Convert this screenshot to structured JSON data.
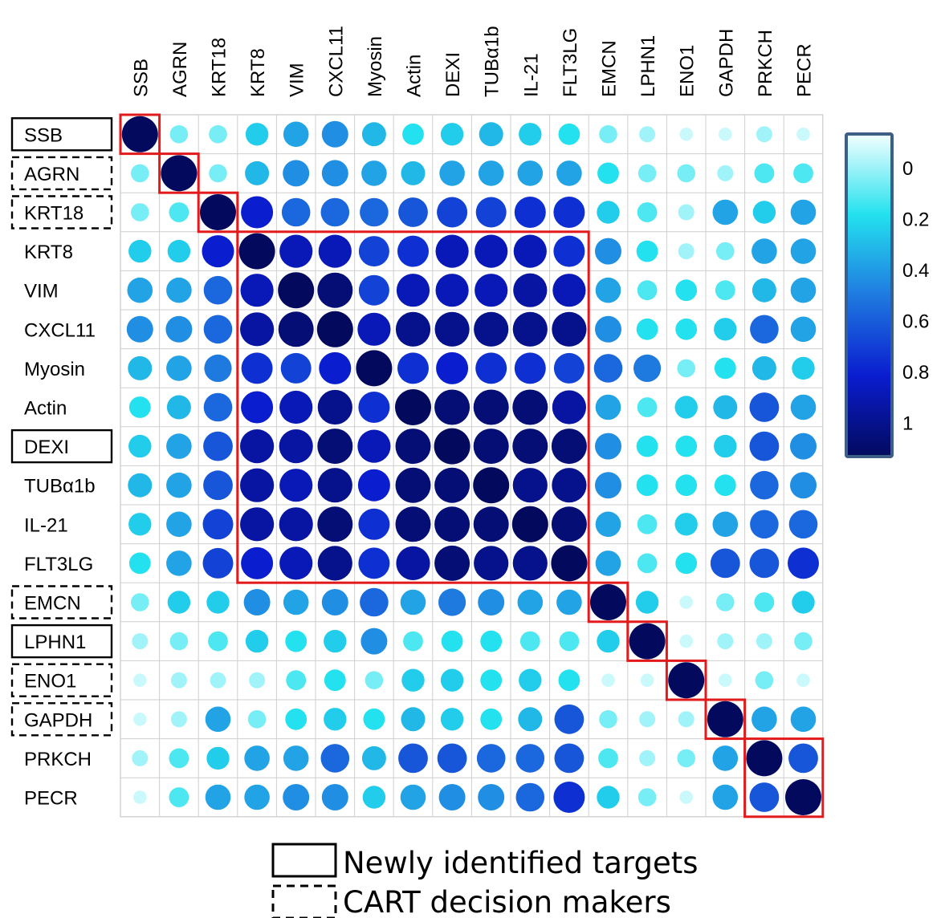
{
  "chart_data": {
    "type": "heatmap",
    "labels": [
      "SSB",
      "AGRN",
      "KRT18",
      "KRT8",
      "VIM",
      "CXCL11",
      "Myosin",
      "Actin",
      "DEXI",
      "TUBα1b",
      "IL-21",
      "FLT3LG",
      "EMCN",
      "LPHN1",
      "ENO1",
      "GAPDH",
      "PRKCH",
      "PECR"
    ],
    "row_label_box": [
      "solid",
      "dashed",
      "dashed",
      "none",
      "none",
      "none",
      "none",
      "none",
      "solid",
      "none",
      "none",
      "none",
      "dashed",
      "solid",
      "dashed",
      "dashed",
      "none",
      "none"
    ],
    "values": [
      [
        1.0,
        0.15,
        0.15,
        0.3,
        0.4,
        0.45,
        0.35,
        0.25,
        0.3,
        0.35,
        0.3,
        0.25,
        0.15,
        0.1,
        0.05,
        0.05,
        0.1,
        0.05
      ],
      [
        0.15,
        1.0,
        0.15,
        0.35,
        0.45,
        0.45,
        0.4,
        0.35,
        0.4,
        0.4,
        0.4,
        0.4,
        0.25,
        0.15,
        0.15,
        0.1,
        0.2,
        0.2
      ],
      [
        0.15,
        0.2,
        1.0,
        0.75,
        0.55,
        0.55,
        0.55,
        0.6,
        0.65,
        0.65,
        0.7,
        0.7,
        0.3,
        0.2,
        0.1,
        0.4,
        0.3,
        0.4
      ],
      [
        0.3,
        0.3,
        0.75,
        1.0,
        0.8,
        0.8,
        0.65,
        0.7,
        0.8,
        0.8,
        0.8,
        0.7,
        0.45,
        0.25,
        0.1,
        0.15,
        0.4,
        0.4
      ],
      [
        0.4,
        0.4,
        0.55,
        0.8,
        1.0,
        0.95,
        0.65,
        0.8,
        0.8,
        0.8,
        0.85,
        0.8,
        0.4,
        0.2,
        0.25,
        0.2,
        0.35,
        0.4
      ],
      [
        0.45,
        0.45,
        0.55,
        0.85,
        0.95,
        1.0,
        0.8,
        0.9,
        0.9,
        0.9,
        0.9,
        0.9,
        0.45,
        0.25,
        0.25,
        0.3,
        0.55,
        0.4
      ],
      [
        0.35,
        0.4,
        0.5,
        0.7,
        0.65,
        0.75,
        1.0,
        0.7,
        0.75,
        0.7,
        0.7,
        0.65,
        0.55,
        0.5,
        0.15,
        0.25,
        0.35,
        0.3
      ],
      [
        0.25,
        0.35,
        0.55,
        0.75,
        0.8,
        0.9,
        0.7,
        1.0,
        0.95,
        0.95,
        0.95,
        0.85,
        0.4,
        0.2,
        0.3,
        0.35,
        0.6,
        0.4
      ],
      [
        0.3,
        0.4,
        0.6,
        0.85,
        0.85,
        0.95,
        0.8,
        0.95,
        1.0,
        0.95,
        0.95,
        0.95,
        0.45,
        0.25,
        0.25,
        0.3,
        0.6,
        0.45
      ],
      [
        0.35,
        0.4,
        0.6,
        0.85,
        0.8,
        0.9,
        0.75,
        0.95,
        0.95,
        1.0,
        0.9,
        0.9,
        0.45,
        0.25,
        0.25,
        0.25,
        0.55,
        0.45
      ],
      [
        0.3,
        0.4,
        0.65,
        0.85,
        0.85,
        0.95,
        0.7,
        0.95,
        0.95,
        0.95,
        1.0,
        0.95,
        0.4,
        0.2,
        0.3,
        0.4,
        0.55,
        0.55
      ],
      [
        0.25,
        0.4,
        0.65,
        0.75,
        0.8,
        0.9,
        0.7,
        0.85,
        0.95,
        0.9,
        0.9,
        1.0,
        0.4,
        0.2,
        0.25,
        0.6,
        0.6,
        0.7
      ],
      [
        0.15,
        0.3,
        0.3,
        0.45,
        0.4,
        0.45,
        0.55,
        0.4,
        0.5,
        0.45,
        0.4,
        0.4,
        1.0,
        0.3,
        0.05,
        0.15,
        0.2,
        0.3
      ],
      [
        0.1,
        0.15,
        0.2,
        0.3,
        0.25,
        0.3,
        0.45,
        0.2,
        0.25,
        0.25,
        0.2,
        0.2,
        0.3,
        1.0,
        0.05,
        0.1,
        0.1,
        0.15
      ],
      [
        0.05,
        0.1,
        0.1,
        0.1,
        0.2,
        0.25,
        0.15,
        0.3,
        0.3,
        0.25,
        0.3,
        0.25,
        0.05,
        0.05,
        1.0,
        0.05,
        0.15,
        0.05
      ],
      [
        0.05,
        0.1,
        0.4,
        0.15,
        0.25,
        0.3,
        0.25,
        0.35,
        0.3,
        0.25,
        0.35,
        0.6,
        0.15,
        0.1,
        0.1,
        1.0,
        0.4,
        0.4
      ],
      [
        0.1,
        0.2,
        0.3,
        0.4,
        0.4,
        0.55,
        0.35,
        0.6,
        0.6,
        0.55,
        0.55,
        0.6,
        0.2,
        0.1,
        0.15,
        0.4,
        1.0,
        0.6
      ],
      [
        0.05,
        0.2,
        0.4,
        0.4,
        0.45,
        0.45,
        0.3,
        0.4,
        0.45,
        0.45,
        0.55,
        0.7,
        0.3,
        0.15,
        0.05,
        0.4,
        0.6,
        1.0
      ]
    ],
    "scale": {
      "min": 0,
      "max": 1,
      "ticks": [
        "0",
        "0.2",
        "0.4",
        "0.6",
        "0.8",
        "1"
      ],
      "colors": [
        "#f4ffff",
        "#23e1ee",
        "#1f7ae0",
        "#0a1dcf",
        "#030a5e"
      ]
    },
    "highlight_blocks": [
      [
        0,
        0
      ],
      [
        1,
        1
      ],
      [
        2,
        2
      ],
      [
        3,
        11
      ],
      [
        12,
        12
      ],
      [
        13,
        13
      ],
      [
        14,
        14
      ],
      [
        15,
        15
      ],
      [
        16,
        17
      ]
    ],
    "legend": {
      "solid": "Newly identified targets",
      "dashed": "CART decision makers"
    },
    "block_color": "#e31a1c"
  }
}
